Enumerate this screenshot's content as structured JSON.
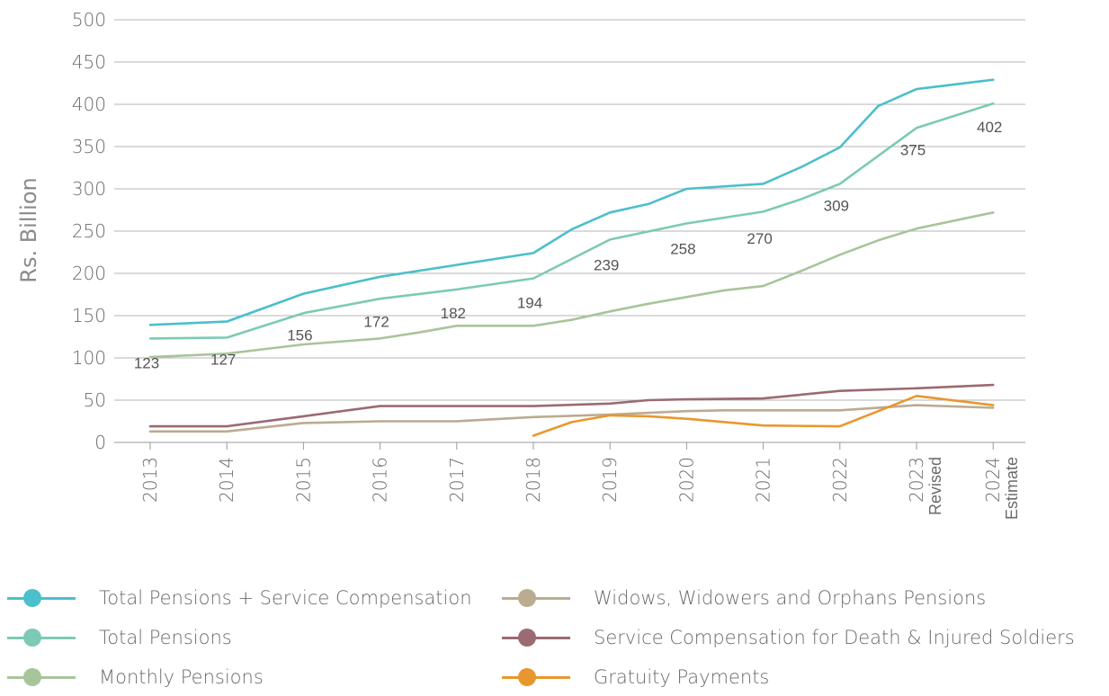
{
  "chart_data": {
    "type": "line",
    "ylabel": "Rs. Billion",
    "ylim": [
      0,
      500
    ],
    "yticks": [
      0,
      50,
      100,
      150,
      200,
      250,
      300,
      350,
      400,
      450,
      500
    ],
    "categories": [
      "2013",
      "2014",
      "2015",
      "2016",
      "2017",
      "2018",
      "2019",
      "2020",
      "2021",
      "2022",
      "2023",
      "2024"
    ],
    "category_sublabels": [
      "",
      "",
      "",
      "",
      "",
      "",
      "",
      "",
      "",
      "",
      "Revised",
      "Estimate"
    ],
    "grid": "horizontal",
    "legend_position": "bottom",
    "series": [
      {
        "name": "Total Pensions + Service Compensation",
        "color": "#4bbfcb",
        "x": [
          0,
          1,
          2,
          3,
          4,
          5,
          5.5,
          6,
          6.5,
          7,
          8,
          8.5,
          9,
          9.5,
          10,
          11
        ],
        "values": [
          139,
          143,
          176,
          196,
          210,
          224,
          252,
          272,
          282,
          300,
          306,
          326,
          349,
          398,
          418,
          429
        ]
      },
      {
        "name": "Total Pensions",
        "color": "#7ccab5",
        "labels": [
          123,
          127,
          156,
          172,
          182,
          194,
          239,
          258,
          270,
          309,
          375,
          402
        ],
        "x": [
          0,
          1,
          2,
          3,
          4,
          5,
          5.5,
          6,
          7,
          8,
          8.5,
          9,
          9.5,
          10,
          11
        ],
        "values": [
          123,
          124,
          153,
          170,
          181,
          194,
          217,
          240,
          259,
          273,
          288,
          306,
          339,
          372,
          401
        ]
      },
      {
        "name": "Monthly Pensions",
        "color": "#a8c59a",
        "x": [
          0,
          1,
          2,
          3,
          3.5,
          4,
          5,
          5.5,
          6,
          6.5,
          7,
          7.5,
          8,
          8.5,
          9,
          9.5,
          10,
          11
        ],
        "values": [
          101,
          105,
          116,
          123,
          130,
          138,
          138,
          145,
          155,
          164,
          172,
          180,
          185,
          203,
          222,
          239,
          253,
          272
        ]
      },
      {
        "name": "Widows, Widowers and Orphans Pensions",
        "color": "#bbab90",
        "x": [
          0,
          1,
          2,
          3,
          4,
          5,
          6,
          7,
          7.5,
          8,
          9,
          10,
          11
        ],
        "values": [
          13,
          13,
          23,
          25,
          25,
          30,
          33,
          37,
          38,
          38,
          38,
          44,
          41
        ]
      },
      {
        "name": "Service Compensation for Death & Injured Soldiers",
        "color": "#9b6a72",
        "x": [
          0,
          1,
          2,
          3,
          4,
          5,
          6,
          6.5,
          7,
          8,
          9,
          10,
          11
        ],
        "values": [
          19,
          19,
          31,
          43,
          43,
          43,
          46,
          50,
          51,
          52,
          61,
          64,
          68
        ]
      },
      {
        "name": "Gratuity Payments",
        "color": "#e8972e",
        "x": [
          5,
          5.5,
          6,
          6.5,
          7,
          8,
          9,
          10,
          11
        ],
        "values": [
          8,
          24,
          32,
          31,
          28,
          20,
          19,
          55,
          44
        ]
      }
    ]
  }
}
